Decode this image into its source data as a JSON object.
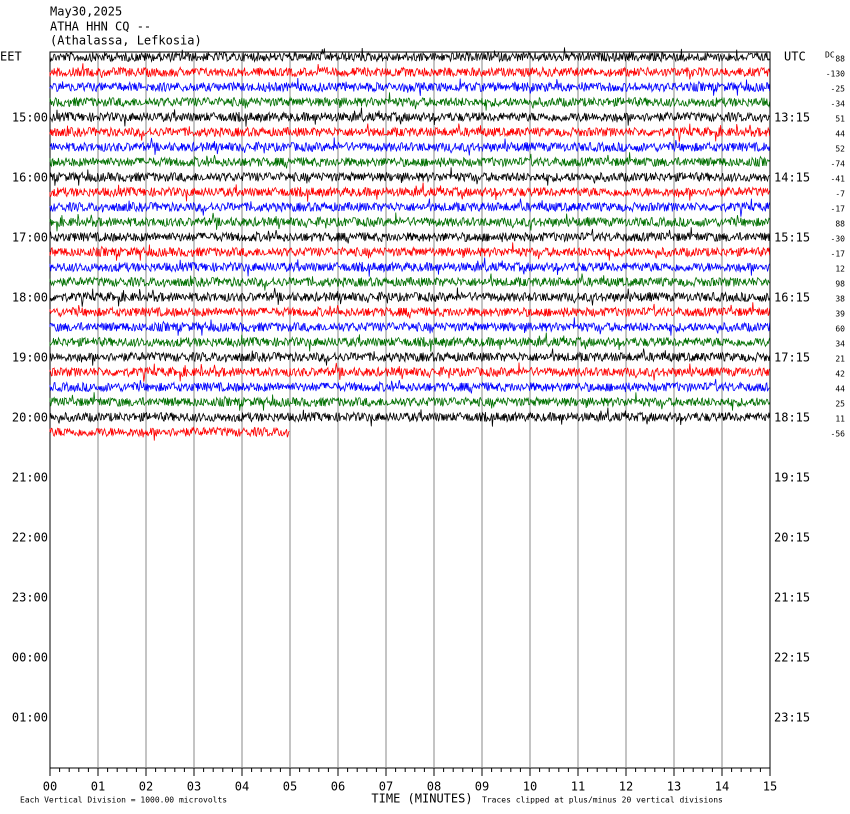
{
  "header": {
    "date": "May30,2025",
    "station": "ATHA HHN CQ --",
    "location": "(Athalassa, Lefkosia)"
  },
  "left_axis": {
    "title": "EET",
    "labels": [
      "15:00",
      "16:00",
      "17:00",
      "18:00",
      "19:00",
      "20:00",
      "21:00",
      "22:00",
      "23:00",
      "00:00",
      "01:00"
    ]
  },
  "right_axis": {
    "title": "UTC",
    "labels": [
      "13:15",
      "14:15",
      "15:15",
      "16:15",
      "17:15",
      "18:15",
      "19:15",
      "20:15",
      "21:15",
      "22:15",
      "23:15"
    ]
  },
  "dc": {
    "title": "DC",
    "values": [
      "88",
      "-130",
      "-25",
      "-34",
      "51",
      "44",
      "52",
      "-74",
      "-41",
      "-7",
      "-17",
      "88",
      "-30",
      "-17",
      "12",
      "98",
      "38",
      "39",
      "60",
      "34",
      "21",
      "42",
      "44",
      "25",
      "11",
      "-56"
    ]
  },
  "x_axis": {
    "ticks": [
      "00",
      "01",
      "02",
      "03",
      "04",
      "05",
      "06",
      "07",
      "08",
      "09",
      "10",
      "11",
      "12",
      "13",
      "14",
      "15"
    ],
    "label": "TIME (MINUTES)"
  },
  "footer": {
    "scale": "Each Vertical Division = 1000.00 microvolts",
    "clip": "Traces clipped at plus/minus 20 vertical divisions"
  }
}
